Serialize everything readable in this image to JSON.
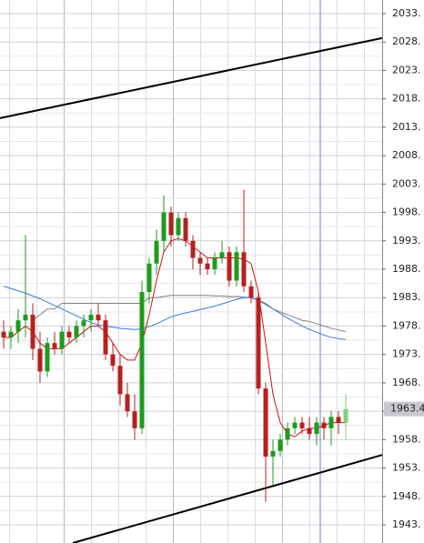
{
  "chart_data": {
    "type": "candlestick",
    "ylim": [
      1939.8,
      2035.4
    ],
    "yticks": [
      {
        "value": 2033,
        "label": "2033."
      },
      {
        "value": 2028,
        "label": "2028."
      },
      {
        "value": 2023,
        "label": "2023."
      },
      {
        "value": 2018,
        "label": "2018."
      },
      {
        "value": 2013,
        "label": "2013."
      },
      {
        "value": 2008,
        "label": "2008."
      },
      {
        "value": 2003,
        "label": "2003."
      },
      {
        "value": 1998,
        "label": "1998."
      },
      {
        "value": 1993,
        "label": "1993."
      },
      {
        "value": 1988,
        "label": "1988."
      },
      {
        "value": 1983,
        "label": "1983."
      },
      {
        "value": 1978,
        "label": "1978."
      },
      {
        "value": 1973,
        "label": "1973."
      },
      {
        "value": 1968,
        "label": "1968."
      },
      {
        "value": 1963,
        "label": "1963."
      },
      {
        "value": 1958,
        "label": "1958."
      },
      {
        "value": 1953,
        "label": "1953."
      },
      {
        "value": 1948,
        "label": "1948."
      },
      {
        "value": 1943,
        "label": "1943."
      }
    ],
    "grid": true,
    "bull_color": "#1e9b1e",
    "bear_color": "#b52020",
    "last_color": "#7fd07f",
    "last_price": 1963.4,
    "ohlc": [
      {
        "open": 1977,
        "high": 1979,
        "low": 1974,
        "close": 1976
      },
      {
        "open": 1976,
        "high": 1978,
        "low": 1974,
        "close": 1977
      },
      {
        "open": 1977,
        "high": 1981,
        "low": 1975,
        "close": 1979
      },
      {
        "open": 1979,
        "high": 1994,
        "low": 1976,
        "close": 1980
      },
      {
        "open": 1980,
        "high": 1982,
        "low": 1972,
        "close": 1974
      },
      {
        "open": 1974,
        "high": 1977,
        "low": 1968,
        "close": 1970
      },
      {
        "open": 1970,
        "high": 1976,
        "low": 1969,
        "close": 1975
      },
      {
        "open": 1975,
        "high": 1977,
        "low": 1973,
        "close": 1974
      },
      {
        "open": 1974,
        "high": 1978,
        "low": 1973,
        "close": 1977
      },
      {
        "open": 1977,
        "high": 1978,
        "low": 1975,
        "close": 1976
      },
      {
        "open": 1976,
        "high": 1979,
        "low": 1975,
        "close": 1978
      },
      {
        "open": 1978,
        "high": 1980,
        "low": 1976,
        "close": 1979
      },
      {
        "open": 1979,
        "high": 1981,
        "low": 1977,
        "close": 1980
      },
      {
        "open": 1980,
        "high": 1982,
        "low": 1978,
        "close": 1979
      },
      {
        "open": 1979,
        "high": 1980,
        "low": 1972,
        "close": 1973
      },
      {
        "open": 1973,
        "high": 1975,
        "low": 1970,
        "close": 1971
      },
      {
        "open": 1971,
        "high": 1973,
        "low": 1964,
        "close": 1966
      },
      {
        "open": 1966,
        "high": 1968,
        "low": 1962,
        "close": 1963
      },
      {
        "open": 1963,
        "high": 1966,
        "low": 1958,
        "close": 1960
      },
      {
        "open": 1960,
        "high": 1986,
        "low": 1959,
        "close": 1984
      },
      {
        "open": 1984,
        "high": 1990,
        "low": 1982,
        "close": 1989
      },
      {
        "open": 1989,
        "high": 1995,
        "low": 1987,
        "close": 1993
      },
      {
        "open": 1993,
        "high": 2001,
        "low": 1991,
        "close": 1998
      },
      {
        "open": 1998,
        "high": 1999,
        "low": 1992,
        "close": 1994
      },
      {
        "open": 1994,
        "high": 1998,
        "low": 1993,
        "close": 1997
      },
      {
        "open": 1997,
        "high": 1998,
        "low": 1992,
        "close": 1993
      },
      {
        "open": 1993,
        "high": 1994,
        "low": 1988,
        "close": 1990
      },
      {
        "open": 1990,
        "high": 1991,
        "low": 1987,
        "close": 1989
      },
      {
        "open": 1989,
        "high": 1990,
        "low": 1987,
        "close": 1988
      },
      {
        "open": 1988,
        "high": 1991,
        "low": 1987,
        "close": 1990
      },
      {
        "open": 1990,
        "high": 1993,
        "low": 1989,
        "close": 1991
      },
      {
        "open": 1991,
        "high": 1992,
        "low": 1985,
        "close": 1986
      },
      {
        "open": 1986,
        "high": 1992,
        "low": 1985,
        "close": 1991
      },
      {
        "open": 1991,
        "high": 2002,
        "low": 1984,
        "close": 1985
      },
      {
        "open": 1985,
        "high": 1986,
        "low": 1982,
        "close": 1983
      },
      {
        "open": 1983,
        "high": 1984,
        "low": 1966,
        "close": 1967
      },
      {
        "open": 1967,
        "high": 1968,
        "low": 1947,
        "close": 1955
      },
      {
        "open": 1955,
        "high": 1958,
        "low": 1950,
        "close": 1956
      },
      {
        "open": 1956,
        "high": 1959,
        "low": 1955,
        "close": 1958
      },
      {
        "open": 1958,
        "high": 1961,
        "low": 1957,
        "close": 1960
      },
      {
        "open": 1960,
        "high": 1962,
        "low": 1959,
        "close": 1961
      },
      {
        "open": 1961,
        "high": 1962,
        "low": 1959,
        "close": 1960
      },
      {
        "open": 1960,
        "high": 1962,
        "low": 1958,
        "close": 1959
      },
      {
        "open": 1959,
        "high": 1962,
        "low": 1957,
        "close": 1961
      },
      {
        "open": 1961,
        "high": 1962,
        "low": 1958,
        "close": 1960
      },
      {
        "open": 1960,
        "high": 1963,
        "low": 1957,
        "close": 1962
      },
      {
        "open": 1962,
        "high": 1963,
        "low": 1959,
        "close": 1961
      },
      {
        "open": 1961,
        "high": 1966,
        "low": 1958,
        "close": 1963.4
      }
    ],
    "series": [
      {
        "color": "#d01010",
        "values": [
          1976,
          1976,
          1977,
          1978,
          1977,
          1975,
          1974,
          1974,
          1974,
          1975,
          1976,
          1977,
          1978,
          1978,
          1977,
          1975,
          1973,
          1972,
          1972,
          1975,
          1980,
          1986,
          1991,
          1993,
          1993.4,
          1993,
          1992,
          1991,
          1990,
          1990,
          1990,
          1990,
          1990,
          1989.8,
          1989,
          1984,
          1975,
          1966,
          1961,
          1959,
          1958.5,
          1959.5,
          1960,
          1960,
          1960.5,
          1961,
          1961,
          1961
        ]
      },
      {
        "color": "#808080",
        "values": [
          null,
          null,
          null,
          null,
          1979,
          1980,
          1981,
          1981,
          1982,
          1982,
          1982,
          1982,
          1982,
          1982,
          1982,
          1982,
          1982,
          1982,
          1982,
          1982,
          1983,
          1983,
          1983.2,
          1983.4,
          1983.4,
          1983.4,
          1983.4,
          1983.4,
          1983.4,
          1983.3,
          1983.3,
          1983.2,
          1983.2,
          1983.1,
          1983,
          1982.5,
          1982,
          1981,
          1980.5,
          1980,
          1979.5,
          1979,
          1978.8,
          1978.4,
          1978,
          1977.6,
          1977.3,
          1977
        ]
      },
      {
        "color": "#3a78d8",
        "values": [
          1985,
          1984.6,
          1984.2,
          1983.8,
          1983.3,
          1982.8,
          1982.2,
          1981.6,
          1981,
          1980.4,
          1979.8,
          1979.2,
          1978.6,
          1978.2,
          1978,
          1977.8,
          1977.6,
          1977.5,
          1977.4,
          1977.5,
          1977.9,
          1978.4,
          1979,
          1979.6,
          1980,
          1980.3,
          1980.6,
          1980.9,
          1981.2,
          1981.5,
          1981.9,
          1982.3,
          1982.7,
          1983,
          1983,
          1982.5,
          1981.8,
          1981,
          1980.2,
          1979.4,
          1978.7,
          1978,
          1977.4,
          1976.9,
          1976.4,
          1976,
          1975.8,
          1975.6
        ]
      }
    ],
    "trendlines": [
      {
        "x": [
          -0.5,
          52
        ],
        "values": [
          2014.6,
          2028.7
        ]
      },
      {
        "x": [
          9.5,
          52
        ],
        "values": [
          1939.8,
          1955.3
        ]
      }
    ]
  }
}
